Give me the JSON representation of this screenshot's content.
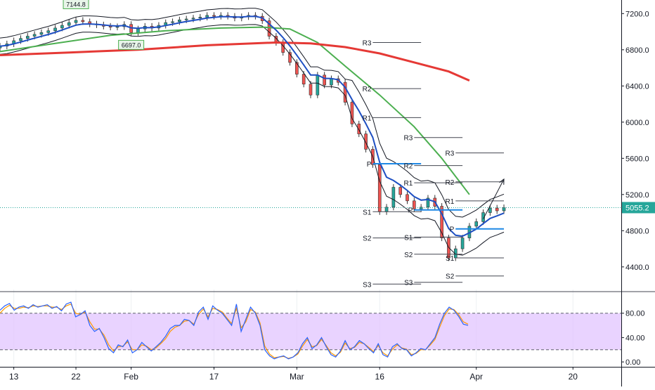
{
  "chart_data": [
    {
      "type": "candlestick",
      "ylim": [
        4150,
        7350
      ],
      "xlim": [
        0,
        90
      ],
      "grid": true,
      "price_axis": {
        "ticks": [
          {
            "v": 7200,
            "label": "7200.0"
          },
          {
            "v": 6800,
            "label": "6800.0"
          },
          {
            "v": 6400,
            "label": "6400.0"
          },
          {
            "v": 6000,
            "label": "6000.0"
          },
          {
            "v": 5600,
            "label": "5600.0"
          },
          {
            "v": 5200,
            "label": "5200.0"
          },
          {
            "v": 4800,
            "label": "4800.0"
          },
          {
            "v": 4400,
            "label": "4400.0"
          }
        ],
        "last_price": 5055.2,
        "last_price_label": "5055.2"
      },
      "date_axis": [
        {
          "x": 2,
          "label": "13"
        },
        {
          "x": 11,
          "label": "22"
        },
        {
          "x": 19,
          "label": "Feb"
        },
        {
          "x": 31,
          "label": "17"
        },
        {
          "x": 43,
          "label": "Mar"
        },
        {
          "x": 55,
          "label": "16"
        },
        {
          "x": 69,
          "label": "Apr"
        },
        {
          "x": 83,
          "label": "20"
        }
      ],
      "close": [
        6840,
        6865,
        6900,
        6925,
        6950,
        6970,
        6990,
        7010,
        7040,
        7070,
        7100,
        7125,
        7110,
        7085,
        7075,
        7060,
        7050,
        7055,
        7080,
        6990,
        7030,
        7060,
        7040,
        7070,
        7100,
        7110,
        7130,
        7140,
        7150,
        7160,
        7180,
        7170,
        7180,
        7170,
        7150,
        7165,
        7180,
        7170,
        7120,
        6950,
        6880,
        6770,
        6660,
        6530,
        6420,
        6300,
        6520,
        6410,
        6480,
        6440,
        6220,
        5980,
        5870,
        5700,
        5530,
        5010,
        5060,
        5280,
        5200,
        5130,
        5040,
        5060,
        5160,
        5070,
        4720,
        4500,
        4600,
        4720,
        4850,
        4900,
        5000,
        5050,
        5020,
        5055
      ],
      "ma_red": [
        [
          0,
          6740
        ],
        [
          10,
          6770
        ],
        [
          20,
          6800
        ],
        [
          30,
          6850
        ],
        [
          40,
          6880
        ],
        [
          45,
          6870
        ],
        [
          50,
          6830
        ],
        [
          55,
          6760
        ],
        [
          60,
          6660
        ],
        [
          65,
          6560
        ],
        [
          68,
          6460
        ]
      ],
      "ma_green": [
        [
          0,
          6780
        ],
        [
          8,
          6870
        ],
        [
          16,
          6960
        ],
        [
          24,
          7010
        ],
        [
          32,
          7040
        ],
        [
          38,
          7050
        ],
        [
          42,
          7030
        ],
        [
          46,
          6880
        ],
        [
          50,
          6620
        ],
        [
          55,
          6300
        ],
        [
          60,
          5950
        ],
        [
          64,
          5600
        ],
        [
          68,
          5200
        ]
      ],
      "pivot_sets": [
        {
          "x1": 54,
          "x2": 61,
          "levels": [
            {
              "name": "R3",
              "v": 6880
            },
            {
              "name": "R2",
              "v": 6370
            },
            {
              "name": "R1",
              "v": 6050
            },
            {
              "name": "P",
              "v": 5540
            },
            {
              "name": "S1",
              "v": 5010
            },
            {
              "name": "S2",
              "v": 4720
            },
            {
              "name": "S3",
              "v": 4210
            }
          ]
        },
        {
          "x1": 60,
          "x2": 67,
          "levels": [
            {
              "name": "R3",
              "v": 5830
            },
            {
              "name": "R2",
              "v": 5520
            },
            {
              "name": "R1",
              "v": 5330
            },
            {
              "name": "P",
              "v": 5030
            },
            {
              "name": "S1",
              "v": 4730
            },
            {
              "name": "S2",
              "v": 4540
            },
            {
              "name": "S3",
              "v": 4230
            }
          ]
        },
        {
          "x1": 66,
          "x2": 73,
          "levels": [
            {
              "name": "R3",
              "v": 5660
            },
            {
              "name": "R2",
              "v": 5340
            },
            {
              "name": "R1",
              "v": 5130
            },
            {
              "name": "P",
              "v": 4820
            },
            {
              "name": "S1",
              "v": 4500
            },
            {
              "name": "S2",
              "v": 4300
            }
          ]
        }
      ],
      "annotations": [
        {
          "label": "7144.8",
          "x": 11,
          "v": 7300
        },
        {
          "label": "6697.0",
          "x": 19,
          "v": 6850
        }
      ],
      "projection_arrow": {
        "from": [
          70,
          4930
        ],
        "to": [
          73,
          5370
        ]
      }
    },
    {
      "type": "line",
      "ylim": [
        -8,
        112
      ],
      "ticks": [
        {
          "v": 80,
          "label": "80.00"
        },
        {
          "v": 40,
          "label": "40.00"
        },
        {
          "v": 0,
          "label": "0.00"
        }
      ],
      "band": [
        20,
        80
      ],
      "series_blue": [
        85,
        92,
        96,
        85,
        90,
        92,
        88,
        94,
        90,
        92,
        94,
        88,
        91,
        84,
        95,
        98,
        74,
        78,
        84,
        60,
        50,
        55,
        40,
        22,
        15,
        28,
        25,
        36,
        15,
        20,
        32,
        25,
        18,
        25,
        32,
        42,
        55,
        60,
        60,
        70,
        68,
        60,
        82,
        90,
        70,
        92,
        85,
        80,
        70,
        60,
        95,
        50,
        70,
        90,
        80,
        60,
        20,
        10,
        5,
        8,
        10,
        5,
        8,
        15,
        30,
        40,
        22,
        28,
        40,
        25,
        12,
        8,
        18,
        35,
        20,
        25,
        35,
        30,
        22,
        15,
        30,
        12,
        8,
        25,
        30,
        22,
        20,
        10,
        15,
        22,
        20,
        30,
        40,
        62,
        80,
        90,
        85,
        75,
        62,
        60
      ],
      "series_orange": [
        80,
        88,
        93,
        88,
        88,
        90,
        89,
        92,
        91,
        92,
        92,
        90,
        90,
        86,
        92,
        95,
        80,
        78,
        82,
        66,
        54,
        54,
        44,
        28,
        18,
        25,
        26,
        33,
        20,
        20,
        28,
        26,
        20,
        23,
        30,
        38,
        50,
        57,
        60,
        67,
        68,
        62,
        78,
        87,
        74,
        88,
        86,
        82,
        72,
        63,
        88,
        56,
        66,
        86,
        82,
        64,
        26,
        13,
        7,
        8,
        9,
        6,
        8,
        13,
        26,
        37,
        25,
        27,
        37,
        27,
        15,
        10,
        16,
        31,
        22,
        24,
        32,
        30,
        24,
        17,
        27,
        15,
        10,
        21,
        28,
        23,
        21,
        12,
        14,
        20,
        20,
        28,
        37,
        57,
        76,
        87,
        86,
        78,
        66,
        62
      ]
    }
  ]
}
